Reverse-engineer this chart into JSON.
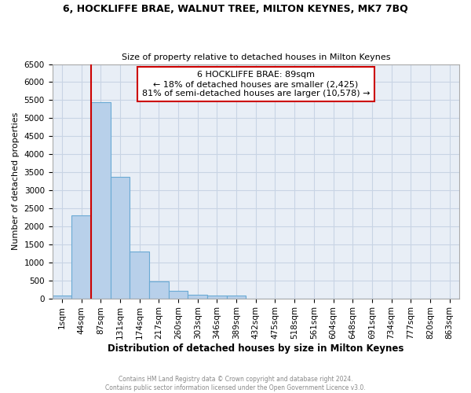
{
  "title1": "6, HOCKLIFFE BRAE, WALNUT TREE, MILTON KEYNES, MK7 7BQ",
  "title2": "Size of property relative to detached houses in Milton Keynes",
  "xlabel": "Distribution of detached houses by size in Milton Keynes",
  "ylabel": "Number of detached properties",
  "footnote": "Contains HM Land Registry data © Crown copyright and database right 2024.\nContains public sector information licensed under the Open Government Licence v3.0.",
  "categories": [
    "1sqm",
    "44sqm",
    "87sqm",
    "131sqm",
    "174sqm",
    "217sqm",
    "260sqm",
    "303sqm",
    "346sqm",
    "389sqm",
    "432sqm",
    "475sqm",
    "518sqm",
    "561sqm",
    "604sqm",
    "648sqm",
    "691sqm",
    "734sqm",
    "777sqm",
    "820sqm",
    "863sqm"
  ],
  "values": [
    75,
    2300,
    5450,
    3380,
    1300,
    480,
    200,
    100,
    70,
    70,
    0,
    0,
    0,
    0,
    0,
    0,
    0,
    0,
    0,
    0,
    0
  ],
  "bar_color": "#b8d0ea",
  "bar_edge_color": "#6aaad4",
  "grid_color": "#c8d4e4",
  "background_color": "#e8eef6",
  "annotation_box_text": "6 HOCKLIFFE BRAE: 89sqm\n← 18% of detached houses are smaller (2,425)\n81% of semi-detached houses are larger (10,578) →",
  "red_line_x": 2.0,
  "ylim": [
    0,
    6500
  ],
  "annotation_box_color": "#ffffff",
  "annotation_box_edge_color": "#cc0000",
  "red_line_color": "#cc0000"
}
